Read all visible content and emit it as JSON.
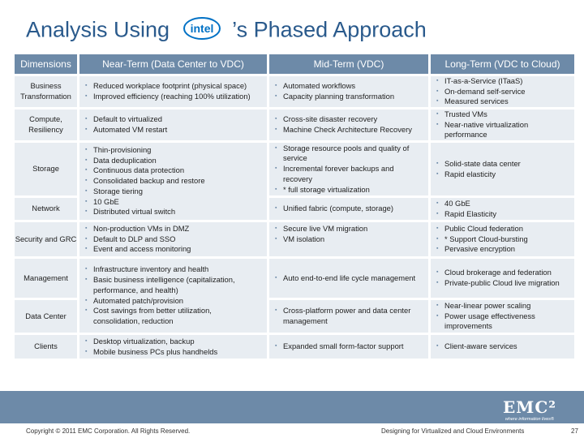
{
  "title": {
    "before": "Analysis Using",
    "logo": "intel",
    "after": "’s Phased Approach"
  },
  "headers": [
    "Dimensions",
    "Near-Term (Data Center to VDC)",
    "Mid-Term (VDC)",
    "Long-Term (VDC to Cloud)"
  ],
  "dimensions": [
    "Business Transformation",
    "Compute, Resiliency",
    "Storage",
    "Network",
    "Security and GRC",
    "Management",
    "Data Center",
    "Clients"
  ],
  "near": {
    "business": [
      "Reduced workplace footprint (physical space)",
      "Improved efficiency (reaching 100% utilization)"
    ],
    "compute": [
      "Default to virtualized",
      "Automated VM restart"
    ],
    "storage_network": [
      "Thin-provisioning",
      "Data deduplication",
      "Continuous data protection",
      "Consolidated backup and restore",
      "Storage tiering",
      "10 GbE",
      "Distributed virtual switch"
    ],
    "security": [
      "Non-production VMs in DMZ",
      "Default to DLP and SSO",
      "Event and access monitoring"
    ],
    "mgmt_dc": [
      "Infrastructure inventory and health",
      "Basic business intelligence (capitalization, performance, and health)",
      "Automated patch/provision",
      "Cost savings from better utilization, consolidation, reduction"
    ],
    "clients": [
      "Desktop virtualization, backup",
      "Mobile business PCs plus handhelds"
    ]
  },
  "mid": {
    "business": [
      "Automated workflows",
      "Capacity planning transformation"
    ],
    "compute": [
      "Cross-site disaster recovery",
      "Machine Check Architecture Recovery"
    ],
    "storage": [
      "Storage resource pools and quality of service",
      "Incremental forever backups and recovery",
      "* full storage virtualization"
    ],
    "network": [
      "Unified fabric (compute, storage)"
    ],
    "security": [
      "Secure live VM migration",
      "VM isolation"
    ],
    "management": [
      "Auto end-to-end life cycle management"
    ],
    "datacenter": [
      "Cross-platform power and data center management"
    ],
    "clients": [
      "Expanded small form-factor support"
    ]
  },
  "long": {
    "business": [
      "IT-as-a-Service (ITaaS)",
      "On-demand self-service",
      "Measured services"
    ],
    "compute": [
      "Trusted VMs",
      "Near-native virtualization performance"
    ],
    "storage": [
      "Solid-state data center",
      "Rapid elasticity"
    ],
    "network": [
      "40 GbE",
      "Rapid Elasticity"
    ],
    "security": [
      "Public Cloud federation",
      "* Support Cloud-bursting",
      "Pervasive encryption"
    ],
    "management": [
      "Cloud brokerage and federation",
      "Private-public Cloud live migration"
    ],
    "datacenter": [
      "Near-linear power scaling",
      "Power usage effectiveness improvements"
    ],
    "clients": [
      "Client-aware services"
    ]
  },
  "footer": {
    "copyright": "Copyright © 2011 EMC Corporation. All Rights Reserved.",
    "center": "Designing for Virtualized and Cloud Environments",
    "page": "27"
  },
  "emc": {
    "mark": "EMC²",
    "tagline": "where information lives®"
  },
  "colors": {
    "header": "#6d8aa8",
    "cell": "#e8edf2",
    "title": "#2a5a8c",
    "intel": "#0071c5"
  }
}
